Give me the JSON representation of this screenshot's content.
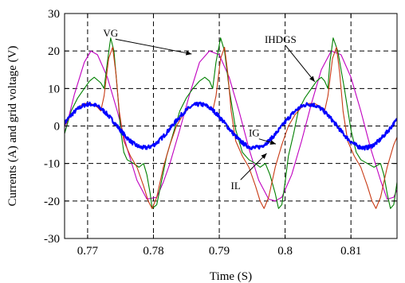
{
  "chart_data": {
    "type": "line",
    "title": "",
    "xlabel": "Time (S)",
    "ylabel": "Currents (A) and grid voltage (V)",
    "xlim": [
      0.7665,
      0.817
    ],
    "ylim": [
      -30,
      30
    ],
    "x_ticks": [
      0.77,
      0.78,
      0.79,
      0.8,
      0.81
    ],
    "x_tick_labels": [
      "0.77",
      "0.78",
      "0.79",
      "0.8",
      "0.81"
    ],
    "y_ticks": [
      -30,
      -20,
      -10,
      0,
      10,
      20,
      30
    ],
    "y_tick_labels": [
      "-30",
      "-20",
      "-10",
      "0",
      "10",
      "20",
      "30"
    ],
    "grid": "dashed",
    "series": [
      {
        "name": "VG",
        "color": "#c000c0",
        "x": [
          0.7665,
          0.768,
          0.7695,
          0.7705,
          0.7715,
          0.773,
          0.7745,
          0.776,
          0.7775,
          0.779,
          0.7805,
          0.7815,
          0.7825,
          0.784,
          0.7855,
          0.787,
          0.7885,
          0.79,
          0.7915,
          0.793,
          0.7945,
          0.796,
          0.7975,
          0.7985,
          0.7995,
          0.801,
          0.8025,
          0.804,
          0.8055,
          0.807,
          0.8085,
          0.81,
          0.8115,
          0.813,
          0.8145,
          0.8155,
          0.8165,
          0.817
        ],
        "y": [
          -2,
          8.5,
          17,
          20,
          19,
          13,
          4,
          -6,
          -14.5,
          -19.5,
          -19,
          -15,
          -10,
          -1,
          8.5,
          17,
          20,
          19,
          13,
          4,
          -6,
          -14.5,
          -19.5,
          -20,
          -19,
          -13,
          -4,
          6,
          15,
          20,
          19,
          13,
          4,
          -6,
          -14.5,
          -19.5,
          -19,
          -17
        ]
      },
      {
        "name": "IHDGS",
        "color": "#008000",
        "x": [
          0.7665,
          0.7675,
          0.7685,
          0.7695,
          0.7703,
          0.771,
          0.772,
          0.7725,
          0.773,
          0.7735,
          0.774,
          0.7745,
          0.775,
          0.7755,
          0.776,
          0.777,
          0.7778,
          0.7785,
          0.779,
          0.7795,
          0.7798,
          0.7805,
          0.7812,
          0.782,
          0.783,
          0.784,
          0.785,
          0.786,
          0.787,
          0.7878,
          0.7885,
          0.789,
          0.7895,
          0.7902,
          0.7908,
          0.7915,
          0.7925,
          0.7935,
          0.7945,
          0.7955,
          0.7962,
          0.797,
          0.7977,
          0.7985,
          0.799,
          0.7995,
          0.8,
          0.8005,
          0.8013,
          0.802,
          0.803,
          0.804,
          0.8048,
          0.8055,
          0.806,
          0.8065,
          0.8068,
          0.8073,
          0.808,
          0.809,
          0.81,
          0.8108,
          0.8115,
          0.8125,
          0.8135,
          0.8145,
          0.815,
          0.8155,
          0.816,
          0.8165,
          0.817
        ],
        "y": [
          -2,
          4,
          7.5,
          10,
          12,
          13,
          11.5,
          10,
          17,
          23.5,
          20,
          10,
          -1,
          -7,
          -9,
          -10,
          -11,
          -10,
          -13,
          -18,
          -22,
          -21,
          -15,
          -8,
          -2,
          4,
          7.5,
          10,
          12,
          13,
          12,
          10,
          17,
          23.5,
          20,
          10,
          -1,
          -7,
          -9,
          -10,
          -11,
          -10,
          -13,
          -18,
          -22,
          -21,
          -15,
          -8,
          -2,
          4,
          7.5,
          10,
          12,
          13,
          12,
          10,
          17,
          23.5,
          20,
          10,
          -1,
          -7,
          -9,
          -10,
          -11,
          -10,
          -13,
          -18,
          -22,
          -21,
          -15
        ]
      },
      {
        "name": "IL",
        "color": "#c83a14",
        "x": [
          0.7665,
          0.7675,
          0.7685,
          0.7695,
          0.7705,
          0.7715,
          0.772,
          0.7725,
          0.7732,
          0.7738,
          0.7743,
          0.7748,
          0.7755,
          0.7765,
          0.7775,
          0.7785,
          0.7792,
          0.7798,
          0.7805,
          0.7815,
          0.7825,
          0.7835,
          0.7845,
          0.7855,
          0.7865,
          0.7875,
          0.7885,
          0.789,
          0.7895,
          0.7902,
          0.7908,
          0.7913,
          0.7918,
          0.7925,
          0.7935,
          0.7945,
          0.7955,
          0.7962,
          0.7968,
          0.7975,
          0.7985,
          0.7995,
          0.8005,
          0.8015,
          0.8025,
          0.8035,
          0.8045,
          0.8055,
          0.806,
          0.8065,
          0.8072,
          0.8078,
          0.8083,
          0.8088,
          0.8095,
          0.8105,
          0.8115,
          0.8125,
          0.8132,
          0.8138,
          0.8145,
          0.8155,
          0.8165,
          0.817
        ],
        "y": [
          0,
          3,
          5,
          6,
          6,
          5,
          4,
          8,
          18,
          21,
          14,
          4,
          -4,
          -8,
          -11,
          -16,
          -20,
          -22,
          -19,
          -11,
          -5,
          0,
          3,
          5,
          6,
          6,
          5,
          4,
          8,
          18,
          21,
          14,
          4,
          -4,
          -8,
          -11,
          -16,
          -20,
          -22,
          -19,
          -11,
          -5,
          0,
          3,
          5,
          6,
          6,
          5,
          4,
          8,
          18,
          21,
          14,
          4,
          -4,
          -8,
          -11,
          -16,
          -20,
          -22,
          -19,
          -11,
          -5,
          -3
        ]
      },
      {
        "name": "IG",
        "color": "#0000ff",
        "amplitude": 5.8,
        "period": 0.0167,
        "peak_x": 0.7703,
        "x_start": 0.7665,
        "x_end": 0.817
      }
    ],
    "annotations": [
      {
        "text": "VG",
        "x": 0.7735,
        "y": 23.8,
        "arrow_to": [
          0.7858,
          19.2
        ]
      },
      {
        "text": "IHDGS",
        "x": 0.7993,
        "y": 22.2,
        "arrow_to": [
          0.8045,
          11.8
        ]
      },
      {
        "text": "IG",
        "x": 0.7953,
        "y": -2.8,
        "arrow_to": [
          0.7986,
          -4.8
        ]
      },
      {
        "text": "IL",
        "x": 0.7925,
        "y": -16.9,
        "arrow_to": [
          0.7972,
          -7.3
        ]
      }
    ]
  }
}
